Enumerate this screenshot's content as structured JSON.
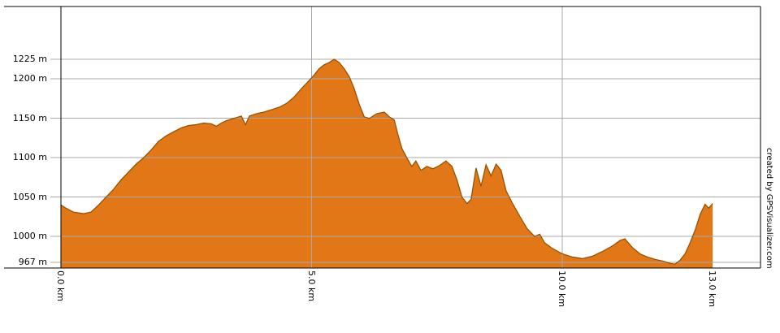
{
  "credit": {
    "text": "created by GPSVisualizer.com"
  },
  "chart_data": {
    "type": "area",
    "title": "",
    "xlabel": "",
    "ylabel": "",
    "x_unit": "km",
    "y_unit": "m",
    "xlim": [
      0,
      13.95
    ],
    "ylim": [
      960,
      1292
    ],
    "grid": true,
    "legend": "none",
    "fill_color": "#e27717",
    "line_color": "#8f4f00",
    "grid_color": "#a8a8a8",
    "axis_color": "#000000",
    "yticks": [
      {
        "value": 1225,
        "label": "1225 m"
      },
      {
        "value": 1200,
        "label": "1200 m"
      },
      {
        "value": 1150,
        "label": "1150 m"
      },
      {
        "value": 1100,
        "label": "1100 m"
      },
      {
        "value": 1050,
        "label": "1050 m"
      },
      {
        "value": 1000,
        "label": "1000 m"
      },
      {
        "value": 967,
        "label": "967 m"
      }
    ],
    "xticks": [
      {
        "value": 0,
        "label": "0.0 km",
        "grid": false
      },
      {
        "value": 5,
        "label": "5.0 km",
        "grid": true
      },
      {
        "value": 10,
        "label": "10.0 km",
        "grid": true
      },
      {
        "value": 13,
        "label": "13.0 km",
        "grid": false
      }
    ],
    "profile": [
      [
        0.0,
        1040
      ],
      [
        0.1,
        1036
      ],
      [
        0.25,
        1031
      ],
      [
        0.45,
        1029
      ],
      [
        0.6,
        1031
      ],
      [
        0.75,
        1040
      ],
      [
        0.9,
        1050
      ],
      [
        1.05,
        1060
      ],
      [
        1.2,
        1072
      ],
      [
        1.35,
        1082
      ],
      [
        1.5,
        1092
      ],
      [
        1.65,
        1100
      ],
      [
        1.8,
        1110
      ],
      [
        1.95,
        1121
      ],
      [
        2.1,
        1128
      ],
      [
        2.25,
        1133
      ],
      [
        2.4,
        1138
      ],
      [
        2.55,
        1141
      ],
      [
        2.7,
        1142
      ],
      [
        2.85,
        1144
      ],
      [
        3.0,
        1143
      ],
      [
        3.1,
        1140
      ],
      [
        3.2,
        1144
      ],
      [
        3.3,
        1147
      ],
      [
        3.45,
        1150
      ],
      [
        3.6,
        1153
      ],
      [
        3.68,
        1142
      ],
      [
        3.76,
        1153
      ],
      [
        3.9,
        1156
      ],
      [
        4.05,
        1158
      ],
      [
        4.2,
        1161
      ],
      [
        4.35,
        1164
      ],
      [
        4.5,
        1169
      ],
      [
        4.65,
        1177
      ],
      [
        4.8,
        1188
      ],
      [
        4.95,
        1198
      ],
      [
        5.05,
        1205
      ],
      [
        5.15,
        1213
      ],
      [
        5.25,
        1218
      ],
      [
        5.35,
        1221
      ],
      [
        5.45,
        1225
      ],
      [
        5.55,
        1221
      ],
      [
        5.65,
        1213
      ],
      [
        5.75,
        1203
      ],
      [
        5.85,
        1188
      ],
      [
        5.95,
        1168
      ],
      [
        6.05,
        1152
      ],
      [
        6.15,
        1150
      ],
      [
        6.3,
        1156
      ],
      [
        6.45,
        1158
      ],
      [
        6.55,
        1152
      ],
      [
        6.65,
        1148
      ],
      [
        6.72,
        1130
      ],
      [
        6.8,
        1112
      ],
      [
        6.9,
        1100
      ],
      [
        7.0,
        1089
      ],
      [
        7.08,
        1096
      ],
      [
        7.18,
        1084
      ],
      [
        7.3,
        1089
      ],
      [
        7.42,
        1086
      ],
      [
        7.55,
        1090
      ],
      [
        7.68,
        1096
      ],
      [
        7.8,
        1089
      ],
      [
        7.9,
        1072
      ],
      [
        8.0,
        1050
      ],
      [
        8.1,
        1042
      ],
      [
        8.18,
        1047
      ],
      [
        8.28,
        1087
      ],
      [
        8.38,
        1064
      ],
      [
        8.48,
        1091
      ],
      [
        8.58,
        1077
      ],
      [
        8.68,
        1092
      ],
      [
        8.78,
        1084
      ],
      [
        8.88,
        1058
      ],
      [
        9.0,
        1043
      ],
      [
        9.15,
        1026
      ],
      [
        9.3,
        1010
      ],
      [
        9.45,
        1000
      ],
      [
        9.55,
        1003
      ],
      [
        9.65,
        992
      ],
      [
        9.8,
        985
      ],
      [
        10.0,
        978
      ],
      [
        10.2,
        974
      ],
      [
        10.4,
        972
      ],
      [
        10.6,
        975
      ],
      [
        10.8,
        981
      ],
      [
        11.0,
        988
      ],
      [
        11.15,
        995
      ],
      [
        11.25,
        997
      ],
      [
        11.4,
        986
      ],
      [
        11.55,
        978
      ],
      [
        11.7,
        974
      ],
      [
        11.85,
        971
      ],
      [
        12.0,
        969
      ],
      [
        12.15,
        966
      ],
      [
        12.25,
        965
      ],
      [
        12.35,
        970
      ],
      [
        12.45,
        978
      ],
      [
        12.55,
        992
      ],
      [
        12.65,
        1008
      ],
      [
        12.75,
        1028
      ],
      [
        12.85,
        1041
      ],
      [
        12.92,
        1036
      ],
      [
        13.0,
        1042
      ]
    ]
  }
}
